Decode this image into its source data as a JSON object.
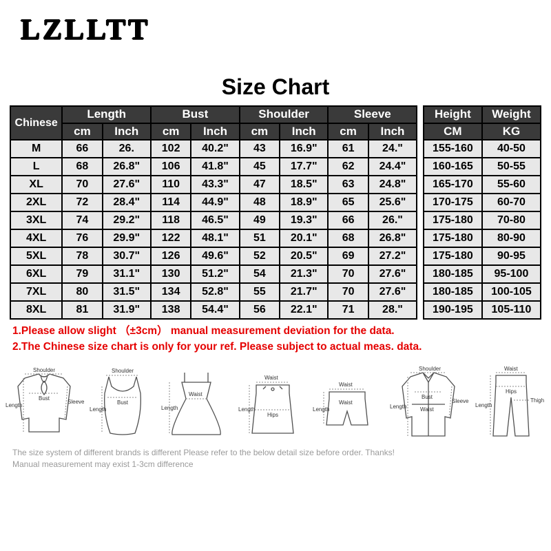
{
  "brand": "LZLLTT",
  "title": "Size Chart",
  "headersTop": {
    "chinese": "Chinese",
    "length": "Length",
    "bust": "Bust",
    "shoulder": "Shoulder",
    "sleeve": "Sleeve",
    "height": "Height",
    "weight": "Weight"
  },
  "headersSub": {
    "cm": "cm",
    "inch": "Inch",
    "CM": "CM",
    "KG": "KG"
  },
  "rows": [
    {
      "size": "M",
      "l_cm": "66",
      "l_in": "26.",
      "b_cm": "102",
      "b_in": "40.2\"",
      "sh_cm": "43",
      "sh_in": "16.9\"",
      "sl_cm": "61",
      "sl_in": "24.\"",
      "h": "155-160",
      "w": "40-50"
    },
    {
      "size": "L",
      "l_cm": "68",
      "l_in": "26.8\"",
      "b_cm": "106",
      "b_in": "41.8\"",
      "sh_cm": "45",
      "sh_in": "17.7\"",
      "sl_cm": "62",
      "sl_in": "24.4\"",
      "h": "160-165",
      "w": "50-55"
    },
    {
      "size": "XL",
      "l_cm": "70",
      "l_in": "27.6\"",
      "b_cm": "110",
      "b_in": "43.3\"",
      "sh_cm": "47",
      "sh_in": "18.5\"",
      "sl_cm": "63",
      "sl_in": "24.8\"",
      "h": "165-170",
      "w": "55-60"
    },
    {
      "size": "2XL",
      "l_cm": "72",
      "l_in": "28.4\"",
      "b_cm": "114",
      "b_in": "44.9\"",
      "sh_cm": "48",
      "sh_in": "18.9\"",
      "sl_cm": "65",
      "sl_in": "25.6\"",
      "h": "170-175",
      "w": "60-70"
    },
    {
      "size": "3XL",
      "l_cm": "74",
      "l_in": "29.2\"",
      "b_cm": "118",
      "b_in": "46.5\"",
      "sh_cm": "49",
      "sh_in": "19.3\"",
      "sl_cm": "66",
      "sl_in": "26.\"",
      "h": "175-180",
      "w": "70-80"
    },
    {
      "size": "4XL",
      "l_cm": "76",
      "l_in": "29.9\"",
      "b_cm": "122",
      "b_in": "48.1\"",
      "sh_cm": "51",
      "sh_in": "20.1\"",
      "sl_cm": "68",
      "sl_in": "26.8\"",
      "h": "175-180",
      "w": "80-90"
    },
    {
      "size": "5XL",
      "l_cm": "78",
      "l_in": "30.7\"",
      "b_cm": "126",
      "b_in": "49.6\"",
      "sh_cm": "52",
      "sh_in": "20.5\"",
      "sl_cm": "69",
      "sl_in": "27.2\"",
      "h": "175-180",
      "w": "90-95"
    },
    {
      "size": "6XL",
      "l_cm": "79",
      "l_in": "31.1\"",
      "b_cm": "130",
      "b_in": "51.2\"",
      "sh_cm": "54",
      "sh_in": "21.3\"",
      "sl_cm": "70",
      "sl_in": "27.6\"",
      "h": "180-185",
      "w": "95-100"
    },
    {
      "size": "7XL",
      "l_cm": "80",
      "l_in": "31.5\"",
      "b_cm": "134",
      "b_in": "52.8\"",
      "sh_cm": "55",
      "sh_in": "21.7\"",
      "sl_cm": "70",
      "sl_in": "27.6\"",
      "h": "180-185",
      "w": "100-105"
    },
    {
      "size": "8XL",
      "l_cm": "81",
      "l_in": "31.9\"",
      "b_cm": "138",
      "b_in": "54.4\"",
      "sh_cm": "56",
      "sh_in": "22.1\"",
      "sl_cm": "71",
      "sl_in": "28.\"",
      "h": "190-195",
      "w": "105-110"
    }
  ],
  "notes": [
    "1.Please allow slight （±3cm） manual measurement deviation for the data.",
    "2.The Chinese size chart is only for your ref. Please subject to actual meas. data."
  ],
  "diagramLabels": {
    "shoulder": "Shoulder",
    "bust": "Bust",
    "length": "Length",
    "sleeve": "Sleeve",
    "waist": "Waist",
    "hips": "Hips",
    "thigh": "Thigh"
  },
  "footer": [
    "The size system of different brands is different  Please refer to the below detail size before order. Thanks!",
    "Manual measurement may exist 1-3cm difference"
  ],
  "style": {
    "note_color": "#e50000",
    "header_bg": "#3a3a3a",
    "header_fg": "#ffffff",
    "cell_bg": "#e8e8e8",
    "footer_color": "#9a9a9a"
  }
}
